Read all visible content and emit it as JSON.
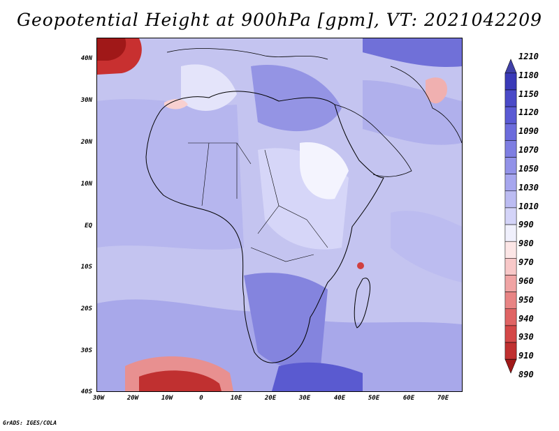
{
  "title": "Geopotential Height at 900hPa [gpm], VT: 2021042209",
  "credit": "GrADS: IGES/COLA",
  "lat_labels": [
    "40N",
    "30N",
    "20N",
    "10N",
    "EQ",
    "10S",
    "20S",
    "30S",
    "40S"
  ],
  "lon_labels": [
    "30W",
    "20W",
    "10W",
    "0",
    "10E",
    "20E",
    "30E",
    "40E",
    "50E",
    "60E",
    "70E"
  ],
  "colorbar": {
    "labels": [
      "1210",
      "1180",
      "1150",
      "1120",
      "1090",
      "1070",
      "1050",
      "1030",
      "1010",
      "990",
      "980",
      "970",
      "960",
      "950",
      "940",
      "930",
      "910",
      "890"
    ],
    "colors": [
      "#4040a8",
      "#3a3ab8",
      "#4a4ac8",
      "#5a5ad4",
      "#6c6cdc",
      "#7e7ee2",
      "#9292e8",
      "#a6a6ee",
      "#bcbcf2",
      "#d4d4f8",
      "#f0f0fc",
      "#fce6e6",
      "#f8c8c8",
      "#f0a4a4",
      "#e88484",
      "#e06464",
      "#d44848",
      "#c03030",
      "#a01818"
    ]
  },
  "colors": {
    "ocean": "#c8c8f2",
    "deep_blue": "#8c8ce4",
    "low_red": "#c02828"
  }
}
